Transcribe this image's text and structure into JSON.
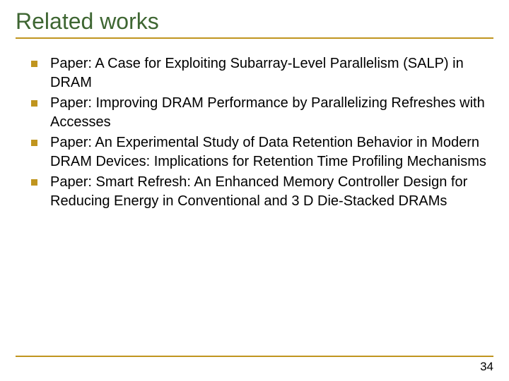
{
  "slide": {
    "title": "Related works",
    "bullets": [
      "Paper: A Case for Exploiting Subarray-Level Parallelism (SALP) in DRAM",
      "Paper: Improving DRAM Performance by Parallelizing Refreshes with Accesses",
      "Paper: An Experimental Study of Data Retention Behavior in Modern DRAM Devices: Implications for Retention Time Profiling Mechanisms",
      "Paper: Smart Refresh: An Enhanced Memory Controller Design for Reducing Energy in Conventional and 3 D Die-Stacked DRAMs"
    ],
    "page_number": "34",
    "colors": {
      "title_color": "#3e6632",
      "accent_color": "#c0951f",
      "text_color": "#000000",
      "background": "#ffffff"
    },
    "typography": {
      "title_fontsize": 32,
      "body_fontsize": 20,
      "page_number_fontsize": 17,
      "font_family": "Verdana"
    }
  }
}
